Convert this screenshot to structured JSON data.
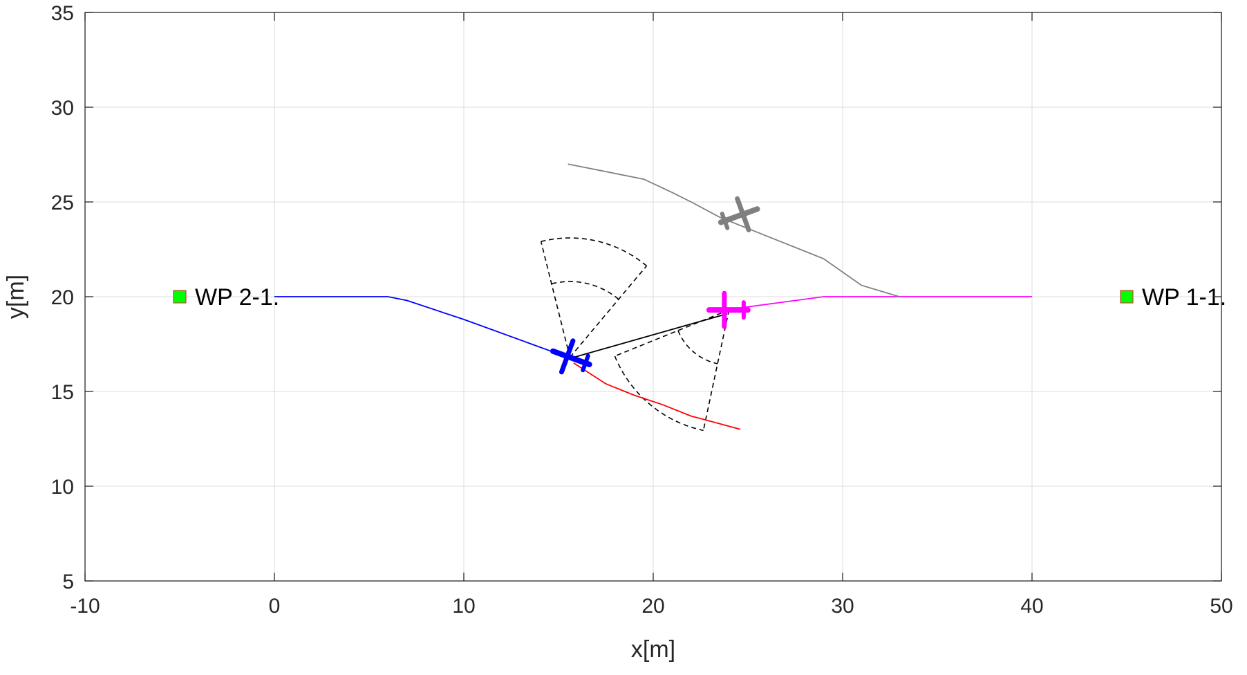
{
  "chart_data": {
    "type": "line",
    "xlabel": "x[m]",
    "ylabel": "y[m]",
    "xlim": [
      -10,
      50
    ],
    "ylim": [
      5,
      35
    ],
    "xticks": [
      "-10",
      "0",
      "10",
      "20",
      "30",
      "40",
      "50"
    ],
    "yticks": [
      "5",
      "10",
      "15",
      "20",
      "25",
      "30",
      "35"
    ],
    "grid": true,
    "series": [
      {
        "id": "blue-path",
        "color": "#0000ff",
        "x": [
          0,
          6,
          7,
          10,
          15.5
        ],
        "y": [
          20,
          20,
          19.8,
          18.8,
          16.8
        ]
      },
      {
        "id": "magenta-path",
        "color": "#ff00ff",
        "x": [
          23.8,
          26,
          29,
          35,
          40
        ],
        "y": [
          19.3,
          19.6,
          20,
          20,
          20
        ]
      },
      {
        "id": "gray-path",
        "color": "#808080",
        "x": [
          15.5,
          19.5,
          21,
          22,
          23.5,
          25,
          27,
          29,
          31,
          33
        ],
        "y": [
          27,
          26.2,
          25.5,
          25,
          24.2,
          23.6,
          22.8,
          22,
          20.6,
          20
        ]
      },
      {
        "id": "red-path",
        "color": "#ff0000",
        "x": [
          15.8,
          17.5,
          19,
          20.5,
          22,
          23.5,
          24.6
        ],
        "y": [
          16.5,
          15.4,
          14.8,
          14.3,
          13.7,
          13.3,
          13
        ]
      },
      {
        "id": "black-link",
        "color": "#000000",
        "x": [
          15.8,
          23.9
        ],
        "y": [
          16.8,
          19.1
        ]
      }
    ],
    "sensor_sectors": [
      {
        "id": "blue-sensor",
        "center": [
          15.6,
          16.8
        ],
        "r_inner": 4,
        "r_outer": 6.3,
        "start_deg": 50,
        "end_deg": 104
      },
      {
        "id": "magenta-sensor",
        "center": [
          24,
          19.3
        ],
        "r_inner": 2.9,
        "r_outer": 6.5,
        "start_deg": 202,
        "end_deg": 258
      }
    ],
    "aircraft": [
      {
        "id": "blue-aircraft",
        "color": "#0000ff",
        "x": 15.6,
        "y": 16.8,
        "heading_deg": 160
      },
      {
        "id": "magenta-aircraft",
        "color": "#ff00ff",
        "x": 23.9,
        "y": 19.3,
        "heading_deg": 180
      },
      {
        "id": "gray-aircraft",
        "color": "#808080",
        "x": 24.6,
        "y": 24.3,
        "heading_deg": 20
      }
    ],
    "waypoints": [
      {
        "id": "wp-2-1",
        "label": "WP 2-1.",
        "x": -5,
        "y": 20,
        "color": "#00ff00"
      },
      {
        "id": "wp-1-1",
        "label": "WP 1-1.",
        "x": 45,
        "y": 20,
        "color": "#00ff00"
      }
    ]
  }
}
